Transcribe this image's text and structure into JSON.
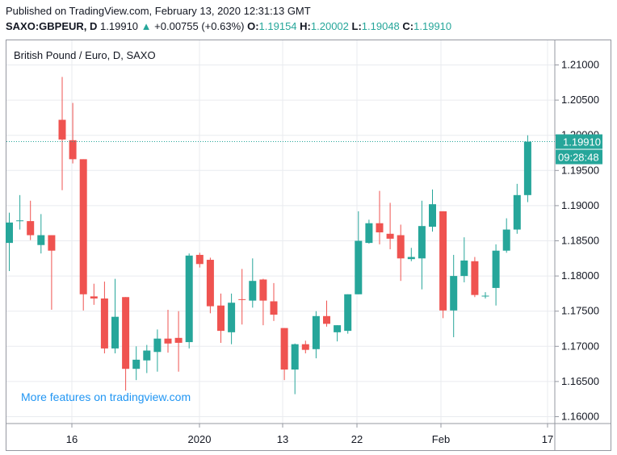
{
  "header": {
    "published": "Published on TradingView.com, February 13, 2020 12:31:13 GMT",
    "symbol": "SAXO:GBPEUR, D",
    "last": "1.19910",
    "change_arrow": "▲",
    "change": "+0.00755 (+0.63%)",
    "o_label": "O:",
    "o_value": "1.19154",
    "h_label": "H:",
    "h_value": "1.20002",
    "l_label": "L:",
    "l_value": "1.19048",
    "c_label": "C:",
    "c_value": "1.19910"
  },
  "legend": "British Pound / Euro, D, SAXO",
  "watermark": "More features on tradingview.com",
  "price_label": "1.19910",
  "countdown_label": "09:28:48",
  "colors": {
    "up": "#26a69a",
    "down": "#ef5350",
    "grid": "#e9ebef",
    "axis": "#9598a1"
  },
  "chart_data": {
    "type": "candlestick",
    "title": "British Pound / Euro, D, SAXO",
    "ylim": [
      1.1585,
      1.2125
    ],
    "y_ticks": [
      "1.21000",
      "1.20500",
      "1.20000",
      "1.19500",
      "1.19000",
      "1.18500",
      "1.18000",
      "1.17500",
      "1.17000",
      "1.16500",
      "1.16000"
    ],
    "x_ticks": [
      "16",
      "2020",
      "13",
      "22",
      "Feb",
      "17"
    ],
    "last_price": 1.1991,
    "grid": true,
    "candles": [
      {
        "o": 1.1847,
        "h": 1.189,
        "l": 1.1807,
        "c": 1.1876
      },
      {
        "o": 1.1879,
        "h": 1.1915,
        "l": 1.1866,
        "c": 1.1879
      },
      {
        "o": 1.1878,
        "h": 1.1907,
        "l": 1.1851,
        "c": 1.1858
      },
      {
        "o": 1.1844,
        "h": 1.1888,
        "l": 1.1832,
        "c": 1.1858
      },
      {
        "o": 1.1858,
        "h": 1.1858,
        "l": 1.1752,
        "c": 1.1836
      },
      {
        "o": 1.2022,
        "h": 1.2083,
        "l": 1.1922,
        "c": 1.1994
      },
      {
        "o": 1.1993,
        "h": 1.2046,
        "l": 1.196,
        "c": 1.1966
      },
      {
        "o": 1.1966,
        "h": 1.1966,
        "l": 1.1751,
        "c": 1.1774
      },
      {
        "o": 1.1771,
        "h": 1.1789,
        "l": 1.1759,
        "c": 1.1768
      },
      {
        "o": 1.1768,
        "h": 1.1792,
        "l": 1.169,
        "c": 1.1697
      },
      {
        "o": 1.1697,
        "h": 1.1796,
        "l": 1.169,
        "c": 1.1742
      },
      {
        "o": 1.177,
        "h": 1.177,
        "l": 1.1637,
        "c": 1.1668
      },
      {
        "o": 1.1668,
        "h": 1.17,
        "l": 1.1652,
        "c": 1.1681
      },
      {
        "o": 1.168,
        "h": 1.1702,
        "l": 1.1662,
        "c": 1.1694
      },
      {
        "o": 1.1692,
        "h": 1.1724,
        "l": 1.1664,
        "c": 1.1711
      },
      {
        "o": 1.1711,
        "h": 1.1752,
        "l": 1.1691,
        "c": 1.1704
      },
      {
        "o": 1.1712,
        "h": 1.175,
        "l": 1.1664,
        "c": 1.1705
      },
      {
        "o": 1.1706,
        "h": 1.1832,
        "l": 1.1697,
        "c": 1.1829
      },
      {
        "o": 1.183,
        "h": 1.1833,
        "l": 1.1812,
        "c": 1.1817
      },
      {
        "o": 1.1823,
        "h": 1.1826,
        "l": 1.1747,
        "c": 1.1757
      },
      {
        "o": 1.1758,
        "h": 1.1775,
        "l": 1.1705,
        "c": 1.1722
      },
      {
        "o": 1.172,
        "h": 1.1775,
        "l": 1.1703,
        "c": 1.1762
      },
      {
        "o": 1.1767,
        "h": 1.181,
        "l": 1.1731,
        "c": 1.1766
      },
      {
        "o": 1.1765,
        "h": 1.1825,
        "l": 1.1755,
        "c": 1.1793
      },
      {
        "o": 1.1795,
        "h": 1.1796,
        "l": 1.173,
        "c": 1.1765
      },
      {
        "o": 1.1764,
        "h": 1.179,
        "l": 1.1736,
        "c": 1.1745
      },
      {
        "o": 1.1726,
        "h": 1.1726,
        "l": 1.1652,
        "c": 1.1667
      },
      {
        "o": 1.1667,
        "h": 1.1704,
        "l": 1.1632,
        "c": 1.1703
      },
      {
        "o": 1.1703,
        "h": 1.1708,
        "l": 1.169,
        "c": 1.1695
      },
      {
        "o": 1.1696,
        "h": 1.175,
        "l": 1.1683,
        "c": 1.1743
      },
      {
        "o": 1.1743,
        "h": 1.1765,
        "l": 1.1728,
        "c": 1.1732
      },
      {
        "o": 1.172,
        "h": 1.173,
        "l": 1.1707,
        "c": 1.173
      },
      {
        "o": 1.1722,
        "h": 1.1774,
        "l": 1.1718,
        "c": 1.1774
      },
      {
        "o": 1.1774,
        "h": 1.1892,
        "l": 1.1774,
        "c": 1.185
      },
      {
        "o": 1.1847,
        "h": 1.188,
        "l": 1.1846,
        "c": 1.1875
      },
      {
        "o": 1.1875,
        "h": 1.1921,
        "l": 1.1845,
        "c": 1.1862
      },
      {
        "o": 1.186,
        "h": 1.1904,
        "l": 1.1838,
        "c": 1.1853
      },
      {
        "o": 1.1858,
        "h": 1.1873,
        "l": 1.1793,
        "c": 1.1825
      },
      {
        "o": 1.1824,
        "h": 1.184,
        "l": 1.1821,
        "c": 1.1827
      },
      {
        "o": 1.1825,
        "h": 1.1907,
        "l": 1.1781,
        "c": 1.1871
      },
      {
        "o": 1.187,
        "h": 1.1923,
        "l": 1.1863,
        "c": 1.1902
      },
      {
        "o": 1.1892,
        "h": 1.1892,
        "l": 1.174,
        "c": 1.1751
      },
      {
        "o": 1.1751,
        "h": 1.183,
        "l": 1.1713,
        "c": 1.18
      },
      {
        "o": 1.18,
        "h": 1.1855,
        "l": 1.1791,
        "c": 1.1822
      },
      {
        "o": 1.1821,
        "h": 1.1827,
        "l": 1.177,
        "c": 1.1773
      },
      {
        "o": 1.1772,
        "h": 1.1777,
        "l": 1.1768,
        "c": 1.1772
      },
      {
        "o": 1.1783,
        "h": 1.1845,
        "l": 1.1758,
        "c": 1.1836
      },
      {
        "o": 1.1836,
        "h": 1.1882,
        "l": 1.1833,
        "c": 1.1866
      },
      {
        "o": 1.1866,
        "h": 1.1931,
        "l": 1.186,
        "c": 1.1915
      },
      {
        "o": 1.1915,
        "h": 1.2,
        "l": 1.1905,
        "c": 1.1991
      }
    ]
  }
}
